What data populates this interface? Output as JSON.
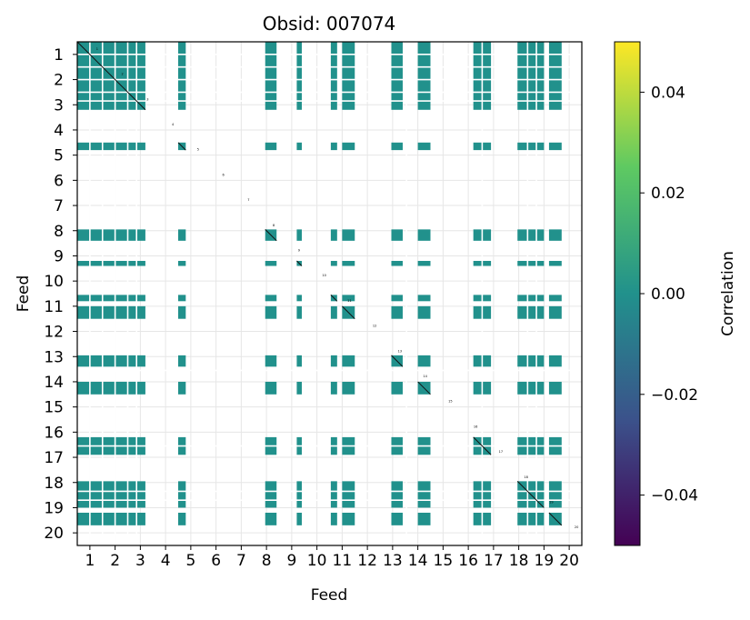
{
  "chart_data": {
    "type": "heatmap",
    "title": "Obsid: 007074",
    "xlabel": "Feed",
    "ylabel": "Feed",
    "ticks": [
      "1",
      "2",
      "3",
      "4",
      "5",
      "6",
      "7",
      "8",
      "9",
      "10",
      "11",
      "12",
      "13",
      "14",
      "15",
      "16",
      "17",
      "18",
      "19",
      "20"
    ],
    "feed_range": [
      1,
      20
    ],
    "colorbar": {
      "label": "Correlation",
      "range": [
        -0.05,
        0.05
      ],
      "ticks": [
        -0.04,
        -0.02,
        0.0,
        0.02,
        0.04
      ],
      "tick_labels": [
        "−0.04",
        "−0.02",
        "0.00",
        "0.02",
        "0.04"
      ],
      "colormap": [
        "#440154",
        "#3b528b",
        "#21918c",
        "#5ec962",
        "#fde725"
      ]
    },
    "cell_value": 0.0,
    "cell_color": "#21918c",
    "active_bands": [
      {
        "from": 0.5,
        "to": 3.2
      },
      {
        "from": 4.5,
        "to": 4.8
      },
      {
        "from": 7.95,
        "to": 8.4
      },
      {
        "from": 9.2,
        "to": 9.4
      },
      {
        "from": 10.55,
        "to": 10.8
      },
      {
        "from": 11.0,
        "to": 11.5
      },
      {
        "from": 12.95,
        "to": 13.4
      },
      {
        "from": 14.0,
        "to": 14.5
      },
      {
        "from": 16.2,
        "to": 16.9
      },
      {
        "from": 17.95,
        "to": 19.0
      },
      {
        "from": 19.2,
        "to": 19.7
      }
    ],
    "gaps": [
      1.0,
      1.5,
      2.0,
      2.5,
      2.85,
      13.55,
      16.55,
      18.35,
      18.7
    ],
    "diagonal_segments": [
      {
        "from": 0.5,
        "to": 3.2
      },
      {
        "from": 4.5,
        "to": 4.8
      },
      {
        "from": 7.95,
        "to": 8.4
      },
      {
        "from": 9.2,
        "to": 9.4
      },
      {
        "from": 10.55,
        "to": 10.8
      },
      {
        "from": 11.0,
        "to": 11.5
      },
      {
        "from": 12.95,
        "to": 13.4
      },
      {
        "from": 14.0,
        "to": 14.5
      },
      {
        "from": 16.2,
        "to": 16.9
      },
      {
        "from": 17.95,
        "to": 19.0
      },
      {
        "from": 19.2,
        "to": 19.7
      }
    ],
    "feed_markers": [
      {
        "label": "1",
        "pos": 1.0
      },
      {
        "label": "2",
        "pos": 2.0
      },
      {
        "label": "3",
        "pos": 3.0
      },
      {
        "label": "4",
        "pos": 4.0
      },
      {
        "label": "5",
        "pos": 5.0
      },
      {
        "label": "6",
        "pos": 6.0
      },
      {
        "label": "7",
        "pos": 7.0
      },
      {
        "label": "8",
        "pos": 8.0
      },
      {
        "label": "9",
        "pos": 9.0
      },
      {
        "label": "10",
        "pos": 10.0
      },
      {
        "label": "11",
        "pos": 11.0
      },
      {
        "label": "12",
        "pos": 12.0
      },
      {
        "label": "13",
        "pos": 13.0
      },
      {
        "label": "14",
        "pos": 14.0
      },
      {
        "label": "15",
        "pos": 15.0
      },
      {
        "label": "16",
        "pos": 16.0
      },
      {
        "label": "17",
        "pos": 17.0
      },
      {
        "label": "18",
        "pos": 18.0
      },
      {
        "label": "19",
        "pos": 19.0
      },
      {
        "label": "20",
        "pos": 20.0
      }
    ]
  }
}
